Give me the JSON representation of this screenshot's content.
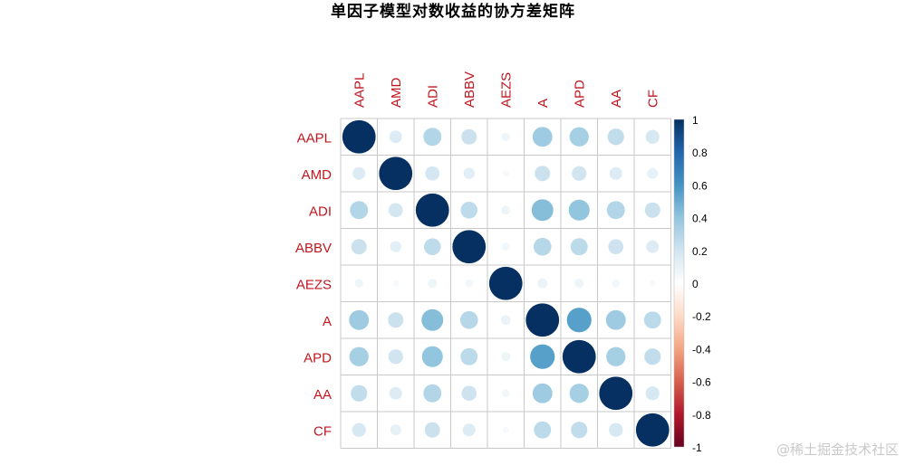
{
  "chart_data": {
    "type": "heatmap",
    "title": "单因子模型对数收益的协方差矩阵",
    "variables": [
      "AAPL",
      "AMD",
      "ADI",
      "ABBV",
      "AEZS",
      "A",
      "APD",
      "AA",
      "CF"
    ],
    "matrix": [
      [
        1.0,
        0.15,
        0.3,
        0.22,
        0.07,
        0.36,
        0.34,
        0.25,
        0.18
      ],
      [
        0.15,
        1.0,
        0.19,
        0.12,
        0.04,
        0.22,
        0.2,
        0.15,
        0.11
      ],
      [
        0.3,
        0.19,
        1.0,
        0.26,
        0.08,
        0.43,
        0.4,
        0.3,
        0.22
      ],
      [
        0.22,
        0.12,
        0.26,
        1.0,
        0.06,
        0.29,
        0.27,
        0.21,
        0.15
      ],
      [
        0.07,
        0.04,
        0.08,
        0.06,
        1.0,
        0.09,
        0.08,
        0.06,
        0.04
      ],
      [
        0.36,
        0.22,
        0.43,
        0.29,
        0.09,
        1.0,
        0.55,
        0.36,
        0.27
      ],
      [
        0.34,
        0.2,
        0.4,
        0.27,
        0.08,
        0.55,
        1.0,
        0.34,
        0.25
      ],
      [
        0.25,
        0.15,
        0.3,
        0.21,
        0.06,
        0.36,
        0.34,
        1.0,
        0.18
      ],
      [
        0.18,
        0.11,
        0.22,
        0.15,
        0.04,
        0.27,
        0.25,
        0.18,
        1.0
      ]
    ],
    "colorbar": {
      "ticks": [
        "1",
        "0.8",
        "0.6",
        "0.4",
        "0.2",
        "0",
        "-0.2",
        "-0.4",
        "-0.6",
        "-0.8",
        "-1"
      ],
      "range": [
        -1,
        1
      ],
      "colors": [
        "#67001F",
        "#B2182B",
        "#D6604D",
        "#F4A582",
        "#FDDBC7",
        "#FFFFFF",
        "#D1E5F0",
        "#92C5DE",
        "#4393C3",
        "#2166AC",
        "#053061"
      ]
    },
    "label_color": "#C0161E",
    "grid_color": "#C8C8C8"
  },
  "watermark": "@稀土掘金技术社区"
}
